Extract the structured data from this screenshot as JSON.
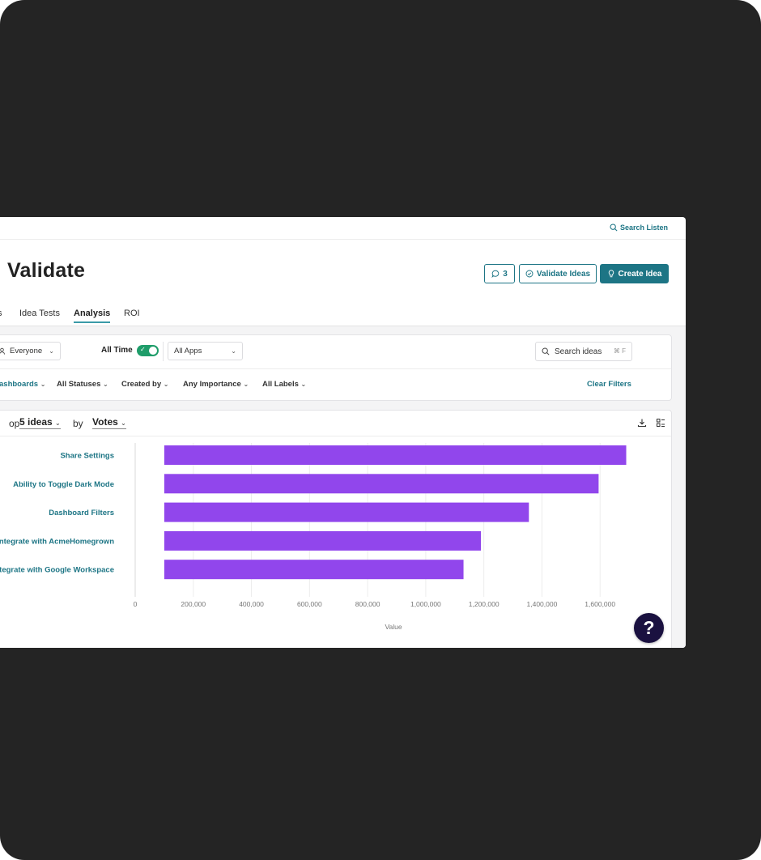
{
  "topbar": {
    "search_listen": "Search Listen"
  },
  "header": {
    "title": "Validate",
    "comments_count": "3",
    "validate_ideas": "Validate Ideas",
    "create_idea": "Create Idea"
  },
  "tabs": [
    {
      "label": "s"
    },
    {
      "label": "Idea Tests"
    },
    {
      "label": "Analysis",
      "active": true
    },
    {
      "label": "ROI"
    }
  ],
  "filters": {
    "audience": "Everyone",
    "all_time": "All Time",
    "all_time_enabled": true,
    "apps": "All Apps",
    "search_placeholder": "Search ideas",
    "search_shortcut": "⌘ F",
    "dashboards": "ashboards",
    "statuses": "All Statuses",
    "created_by": "Created by",
    "importance": "Any Importance",
    "labels": "All Labels",
    "clear": "Clear Filters"
  },
  "chart_header": {
    "top_prefix": "op",
    "count": "5 ideas",
    "by": "by",
    "metric": "Votes"
  },
  "colors": {
    "accent": "#1d7585",
    "bar": "#9146ec",
    "toggle_on": "#1f9d6a",
    "help": "#1a1140"
  },
  "chart_data": {
    "type": "bar",
    "orientation": "horizontal",
    "categories": [
      "Share Settings",
      "Ability to Toggle Dark Mode",
      "Dashboard Filters",
      "Integrate with AcmeHomegrown",
      "Integrate with Google Workspace"
    ],
    "values": [
      1690000,
      1595000,
      1355000,
      1190000,
      1130000
    ],
    "xlabel": "Value",
    "xticks": [
      0,
      200000,
      400000,
      600000,
      800000,
      1000000,
      1200000,
      1400000,
      1600000
    ],
    "xtick_labels": [
      "0",
      "200,000",
      "400,000",
      "600,000",
      "800,000",
      "1,000,000",
      "1,200,000",
      "1,400,000",
      "1,600,000"
    ],
    "xlim": [
      0,
      1800000
    ],
    "grid": true
  },
  "help_label": "?"
}
